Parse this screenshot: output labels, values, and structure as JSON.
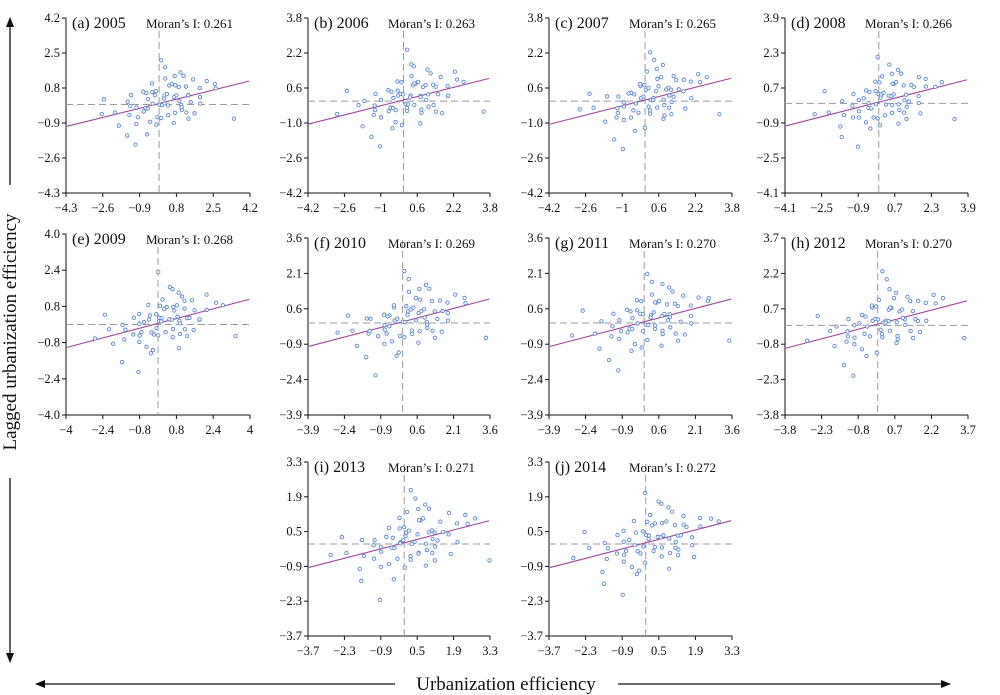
{
  "figure": {
    "xlabel": "Urbanization efficiency",
    "ylabel": "Lagged urbanization efficiency"
  },
  "chart_data": [
    {
      "type": "scatter",
      "title": "(a) 2005",
      "annotation": "Moran’s I: 0.261",
      "moran": 0.261,
      "xlim": [
        -4.3,
        4.2
      ],
      "ylim": [
        -4.3,
        4.2
      ],
      "xticks": [
        "−4.3",
        "−2.6",
        "−0.9",
        "0.8",
        "2.5",
        "4.2"
      ],
      "yticks": [
        "4.2",
        "2.5",
        "0.8",
        "−0.9",
        "−2.6",
        "−4.3"
      ],
      "grid": false,
      "legend": "none",
      "point_color": "#5b86c9",
      "line_color": "#a0449c"
    },
    {
      "type": "scatter",
      "title": "(b) 2006",
      "annotation": "Moran’s I: 0.263",
      "moran": 0.263,
      "xlim": [
        -4.2,
        3.8
      ],
      "ylim": [
        -4.2,
        3.8
      ],
      "xticks": [
        "−4.2",
        "−2.6",
        "−1",
        "0.6",
        "2.2",
        "3.8"
      ],
      "yticks": [
        "3.8",
        "2.2",
        "0.6",
        "−1.0",
        "−2.6",
        "−4.2"
      ],
      "grid": false,
      "legend": "none",
      "point_color": "#5b86c9",
      "line_color": "#a0449c"
    },
    {
      "type": "scatter",
      "title": "(c) 2007",
      "annotation": "Moran’s I: 0.265",
      "moran": 0.265,
      "xlim": [
        -4.2,
        3.8
      ],
      "ylim": [
        -4.2,
        3.8
      ],
      "xticks": [
        "−4.2",
        "−2.6",
        "−1",
        "0.6",
        "2.2",
        "3.8"
      ],
      "yticks": [
        "3.8",
        "2.2",
        "0.6",
        "−1.0",
        "−2.6",
        "−4.2"
      ],
      "grid": false,
      "legend": "none",
      "point_color": "#5b86c9",
      "line_color": "#a0449c"
    },
    {
      "type": "scatter",
      "title": "(d) 2008",
      "annotation": "Moran’s I: 0.266",
      "moran": 0.266,
      "xlim": [
        -4.1,
        3.9
      ],
      "ylim": [
        -4.1,
        3.9
      ],
      "xticks": [
        "−4.1",
        "−2.5",
        "−0.9",
        "0.7",
        "2.3",
        "3.9"
      ],
      "yticks": [
        "3.9",
        "2.3",
        "0.7",
        "−0.9",
        "−2.5",
        "−4.1"
      ],
      "grid": false,
      "legend": "none",
      "point_color": "#5b86c9",
      "line_color": "#a0449c"
    },
    {
      "type": "scatter",
      "title": "(e) 2009",
      "annotation": "Moran’s I: 0.268",
      "moran": 0.268,
      "xlim": [
        -4.0,
        4.0
      ],
      "ylim": [
        -4.0,
        4.0
      ],
      "xticks": [
        "−4",
        "−2.4",
        "−0.8",
        "0.8",
        "2.4",
        "4"
      ],
      "yticks": [
        "4.0",
        "2.4",
        "0.8",
        "−0.8",
        "−2.4",
        "−4.0"
      ],
      "grid": false,
      "legend": "none",
      "point_color": "#5b86c9",
      "line_color": "#a0449c"
    },
    {
      "type": "scatter",
      "title": "(f) 2010",
      "annotation": "Moran’s I: 0.269",
      "moran": 0.269,
      "xlim": [
        -3.9,
        3.6
      ],
      "ylim": [
        -3.9,
        3.6
      ],
      "xticks": [
        "−3.9",
        "−2.4",
        "−0.9",
        "0.6",
        "2.1",
        "3.6"
      ],
      "yticks": [
        "3.6",
        "2.1",
        "0.6",
        "−0.9",
        "−2.4",
        "−3.9"
      ],
      "grid": false,
      "legend": "none",
      "point_color": "#5b86c9",
      "line_color": "#a0449c"
    },
    {
      "type": "scatter",
      "title": "(g) 2011",
      "annotation": "Moran’s I: 0.270",
      "moran": 0.27,
      "xlim": [
        -3.9,
        3.6
      ],
      "ylim": [
        -3.9,
        3.6
      ],
      "xticks": [
        "−3.9",
        "−2.4",
        "−0.9",
        "0.6",
        "2.1",
        "3.6"
      ],
      "yticks": [
        "3.6",
        "2.1",
        "0.6",
        "−0.9",
        "−2.4",
        "−3.9"
      ],
      "grid": false,
      "legend": "none",
      "point_color": "#5b86c9",
      "line_color": "#a0449c"
    },
    {
      "type": "scatter",
      "title": "(h) 2012",
      "annotation": "Moran’s I: 0.270",
      "moran": 0.27,
      "xlim": [
        -3.8,
        3.7
      ],
      "ylim": [
        -3.8,
        3.7
      ],
      "xticks": [
        "−3.8",
        "−2.3",
        "−0.8",
        "0.7",
        "2.2",
        "3.7"
      ],
      "yticks": [
        "3.7",
        "2.2",
        "0.7",
        "−0.8",
        "−2.3",
        "−3.8"
      ],
      "grid": false,
      "legend": "none",
      "point_color": "#5b86c9",
      "line_color": "#a0449c"
    },
    {
      "type": "scatter",
      "title": "(i) 2013",
      "annotation": "Moran’s I: 0.271",
      "moran": 0.271,
      "xlim": [
        -3.7,
        3.3
      ],
      "ylim": [
        -3.7,
        3.3
      ],
      "xticks": [
        "−3.7",
        "−2.3",
        "−0.9",
        "0.5",
        "1.9",
        "3.3"
      ],
      "yticks": [
        "3.3",
        "1.9",
        "0.5",
        "−0.9",
        "−2.3",
        "−3.7"
      ],
      "grid": false,
      "legend": "none",
      "point_color": "#5b86c9",
      "line_color": "#a0449c"
    },
    {
      "type": "scatter",
      "title": "(j) 2014",
      "annotation": "Moran’s I: 0.272",
      "moran": 0.272,
      "xlim": [
        -3.7,
        3.3
      ],
      "ylim": [
        -3.7,
        3.3
      ],
      "xticks": [
        "−3.7",
        "−2.3",
        "−0.9",
        "0.5",
        "1.9",
        "3.3"
      ],
      "yticks": [
        "3.3",
        "1.9",
        "0.5",
        "−0.9",
        "−2.3",
        "−3.7"
      ],
      "grid": false,
      "legend": "none",
      "point_color": "#5b86c9",
      "line_color": "#a0449c"
    }
  ],
  "points": [
    [
      -0.9,
      -0.8
    ],
    [
      -0.6,
      -0.3
    ],
    [
      -0.5,
      -0.9
    ],
    [
      -0.4,
      -0.2
    ],
    [
      -0.3,
      0.1
    ],
    [
      -0.2,
      -0.5
    ],
    [
      -0.1,
      0.3
    ],
    [
      0.0,
      -0.1
    ],
    [
      0.1,
      0.4
    ],
    [
      0.2,
      0.0
    ],
    [
      0.3,
      0.6
    ],
    [
      0.4,
      0.2
    ],
    [
      0.5,
      0.8
    ],
    [
      0.6,
      0.3
    ],
    [
      0.7,
      1.0
    ],
    [
      0.8,
      0.5
    ],
    [
      0.9,
      0.1
    ],
    [
      1.0,
      0.7
    ],
    [
      1.1,
      1.3
    ],
    [
      1.2,
      0.4
    ],
    [
      1.3,
      0.9
    ],
    [
      1.4,
      0.2
    ],
    [
      1.5,
      0.6
    ],
    [
      1.6,
      1.1
    ],
    [
      1.8,
      0.3
    ],
    [
      2.0,
      0.8
    ],
    [
      2.2,
      1.2
    ],
    [
      2.5,
      0.9
    ],
    [
      -1.2,
      0.3
    ],
    [
      -1.4,
      -0.6
    ],
    [
      -1.6,
      0.1
    ],
    [
      -1.8,
      -1.0
    ],
    [
      -2.1,
      -0.3
    ],
    [
      -2.4,
      0.4
    ],
    [
      -0.7,
      0.5
    ],
    [
      -0.8,
      -0.4
    ],
    [
      -0.2,
      0.6
    ],
    [
      0.1,
      -0.6
    ],
    [
      0.3,
      -0.4
    ],
    [
      0.5,
      -0.2
    ],
    [
      0.7,
      -0.5
    ],
    [
      0.9,
      -0.3
    ],
    [
      1.1,
      -0.1
    ],
    [
      1.3,
      -0.6
    ],
    [
      -0.4,
      -1.3
    ],
    [
      -0.1,
      -1.1
    ],
    [
      0.2,
      1.2
    ],
    [
      0.4,
      1.8
    ],
    [
      0.1,
      2.2
    ],
    [
      0.6,
      1.5
    ],
    [
      -1.0,
      -2.1
    ],
    [
      -1.5,
      -1.6
    ],
    [
      -2.8,
      -0.5
    ],
    [
      1.7,
      -0.4
    ],
    [
      3.4,
      -0.6
    ],
    [
      0.0,
      0.8
    ],
    [
      -0.3,
      0.9
    ],
    [
      -0.6,
      0.2
    ],
    [
      0.8,
      -0.9
    ],
    [
      1.9,
      0.1
    ],
    [
      -1.1,
      -0.5
    ],
    [
      -0.5,
      0.4
    ],
    [
      0.2,
      0.2
    ],
    [
      0.6,
      0.9
    ],
    [
      1.0,
      0.2
    ],
    [
      1.2,
      -0.3
    ],
    [
      -0.9,
      0.0
    ],
    [
      -1.3,
      -0.2
    ],
    [
      0.9,
      1.5
    ],
    [
      2.7,
      1.0
    ]
  ]
}
